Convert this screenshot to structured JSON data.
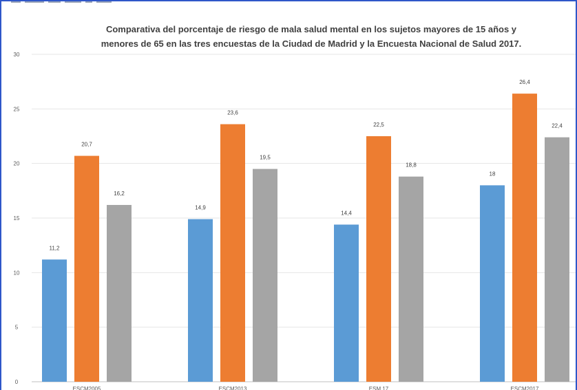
{
  "chart_data": {
    "type": "bar",
    "title_lines": [
      "Comparativa del porcentaje de riesgo de mala salud mental en los sujetos mayores de 15 años y",
      "menores de 65 en las tres encuestas de la Ciudad de Madrid y la Encuesta Nacional de Salud 2017."
    ],
    "categories": [
      "ESCM2005",
      "ESCM2013",
      "ESM 17",
      "ESCM2017"
    ],
    "series": [
      {
        "color": "#5b9bd5",
        "values": [
          11.2,
          14.9,
          14.4,
          18
        ],
        "labels": [
          "11,2",
          "14,9",
          "14,4",
          "18"
        ]
      },
      {
        "color": "#ed7d31",
        "values": [
          20.7,
          23.6,
          22.5,
          26.4
        ],
        "labels": [
          "20,7",
          "23,6",
          "22,5",
          "26,4"
        ]
      },
      {
        "color": "#a5a5a5",
        "values": [
          16.2,
          19.5,
          18.8,
          22.4
        ],
        "labels": [
          "16,2",
          "19,5",
          "18,8",
          "22,4"
        ]
      }
    ],
    "y_ticks": [
      "0",
      "5",
      "10",
      "15",
      "20",
      "25",
      "30"
    ],
    "ylim": [
      0,
      30
    ],
    "grid": true,
    "legend": "none",
    "xlabel": "",
    "ylabel": ""
  }
}
